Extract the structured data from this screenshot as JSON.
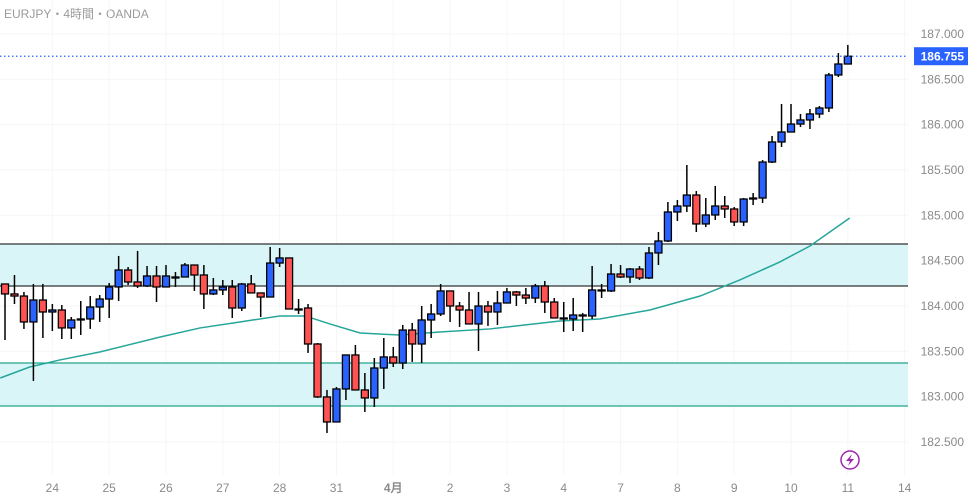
{
  "header": {
    "title": "EURJPY・4時間・OANDA"
  },
  "colors": {
    "up": "#2962ff",
    "down": "#ff5252",
    "border": "#000000",
    "sma": "#26a69a",
    "zone_fill": "#d9f5f7",
    "upper_zone_line": "#333333",
    "lower_zone_line": "#22a38a",
    "last_price": "#2962ff",
    "event_icon": "#9c27b0"
  },
  "icons": {
    "event": "lightning-icon"
  },
  "chart_data": {
    "type": "candlestick",
    "title": "EURJPY・4時間・OANDA",
    "ylim": [
      182.5,
      187.0
    ],
    "y_ticks": [
      "187.000",
      "186.500",
      "186.000",
      "185.500",
      "185.000",
      "184.500",
      "184.000",
      "183.500",
      "183.000",
      "182.500"
    ],
    "y_tick_values": [
      187.0,
      186.5,
      186.0,
      185.5,
      185.0,
      184.5,
      184.0,
      183.5,
      183.0,
      182.5
    ],
    "x_ticks": [
      {
        "label": "24",
        "index": 5
      },
      {
        "label": "25",
        "index": 11
      },
      {
        "label": "26",
        "index": 17
      },
      {
        "label": "27",
        "index": 23
      },
      {
        "label": "28",
        "index": 29
      },
      {
        "label": "31",
        "index": 35
      },
      {
        "label": "4月",
        "index": 41
      },
      {
        "label": "2",
        "index": 47
      },
      {
        "label": "3",
        "index": 53
      },
      {
        "label": "4",
        "index": 59
      },
      {
        "label": "7",
        "index": 65
      },
      {
        "label": "8",
        "index": 71
      },
      {
        "label": "9",
        "index": 77
      },
      {
        "label": "10",
        "index": 83
      },
      {
        "label": "11",
        "index": 89
      },
      {
        "label": "14",
        "index": 95
      }
    ],
    "last_price": "186.755",
    "last_price_value": 186.755,
    "grid": true,
    "zones": [
      {
        "name": "resistance-zone",
        "top": 184.684,
        "bottom": 184.221
      },
      {
        "name": "support-zone",
        "top": 183.371,
        "bottom": 182.897
      }
    ],
    "ohlc": [
      [
        184.243,
        184.243,
        183.625,
        184.133
      ],
      [
        184.133,
        184.342,
        184.022,
        184.11
      ],
      [
        184.11,
        184.155,
        183.747,
        183.824
      ],
      [
        183.824,
        184.243,
        183.173,
        184.066
      ],
      [
        184.066,
        184.243,
        183.647,
        183.934
      ],
      [
        183.934,
        184.022,
        183.724,
        183.956
      ],
      [
        183.956,
        184.011,
        183.636,
        183.758
      ],
      [
        183.758,
        183.879,
        183.636,
        183.846
      ],
      [
        183.846,
        184.055,
        183.68,
        183.857
      ],
      [
        183.857,
        184.11,
        183.747,
        183.989
      ],
      [
        183.989,
        184.121,
        183.824,
        184.077
      ],
      [
        184.077,
        184.254,
        183.868,
        184.21
      ],
      [
        184.21,
        184.552,
        184.055,
        184.397
      ],
      [
        184.397,
        184.43,
        184.232,
        184.265
      ],
      [
        184.265,
        184.607,
        184.199,
        184.221
      ],
      [
        184.221,
        184.441,
        184.21,
        184.331
      ],
      [
        184.331,
        184.441,
        184.044,
        184.21
      ],
      [
        184.21,
        184.452,
        184.21,
        184.331
      ],
      [
        184.32,
        184.375,
        184.21,
        184.32
      ],
      [
        184.32,
        184.474,
        184.32,
        184.452
      ],
      [
        184.452,
        184.452,
        184.166,
        184.342
      ],
      [
        184.342,
        184.452,
        183.967,
        184.133
      ],
      [
        184.133,
        184.309,
        184.121,
        184.177
      ],
      [
        184.177,
        184.287,
        184.121,
        184.21
      ],
      [
        184.21,
        184.287,
        183.868,
        183.978
      ],
      [
        183.978,
        184.254,
        183.945,
        184.243
      ],
      [
        184.243,
        184.342,
        184.144,
        184.144
      ],
      [
        184.144,
        184.144,
        183.879,
        184.099
      ],
      [
        184.099,
        184.651,
        184.099,
        184.474
      ],
      [
        184.474,
        184.64,
        184.43,
        184.53
      ],
      [
        184.53,
        184.53,
        183.967,
        183.967
      ],
      [
        183.967,
        184.077,
        183.912,
        183.967
      ],
      [
        183.978,
        184.022,
        183.482,
        183.581
      ],
      [
        183.581,
        183.592,
        182.986,
        182.997
      ],
      [
        182.997,
        183.074,
        182.599,
        182.721
      ],
      [
        182.721,
        183.107,
        182.721,
        183.085
      ],
      [
        183.085,
        183.46,
        182.963,
        183.46
      ],
      [
        183.46,
        183.57,
        183.074,
        183.074
      ],
      [
        183.074,
        183.261,
        182.831,
        182.986
      ],
      [
        182.986,
        183.427,
        182.886,
        183.316
      ],
      [
        183.316,
        183.647,
        183.085,
        183.438
      ],
      [
        183.438,
        183.548,
        183.327,
        183.371
      ],
      [
        183.371,
        183.791,
        183.305,
        183.735
      ],
      [
        183.735,
        183.813,
        183.383,
        183.581
      ],
      [
        183.581,
        184.0,
        183.371,
        183.846
      ],
      [
        183.846,
        184.022,
        183.647,
        183.912
      ],
      [
        183.912,
        184.243,
        183.89,
        184.166
      ],
      [
        184.166,
        184.166,
        183.824,
        184.0
      ],
      [
        184.0,
        184.044,
        183.769,
        183.956
      ],
      [
        183.956,
        184.155,
        183.802,
        183.802
      ],
      [
        183.802,
        184.155,
        183.504,
        184.0
      ],
      [
        184.0,
        184.055,
        183.78,
        183.934
      ],
      [
        183.934,
        184.166,
        183.791,
        184.033
      ],
      [
        184.033,
        184.199,
        184.033,
        184.155
      ],
      [
        184.155,
        184.166,
        184.0,
        184.121
      ],
      [
        184.121,
        184.199,
        184.022,
        184.088
      ],
      [
        184.088,
        184.243,
        184.033,
        184.221
      ],
      [
        184.221,
        184.276,
        183.923,
        184.044
      ],
      [
        184.044,
        184.088,
        183.868,
        183.868
      ],
      [
        183.868,
        184.044,
        183.713,
        183.868
      ],
      [
        183.857,
        184.088,
        183.724,
        183.901
      ],
      [
        183.901,
        183.923,
        183.713,
        183.901
      ],
      [
        183.89,
        184.441,
        183.857,
        184.177
      ],
      [
        184.177,
        184.243,
        184.088,
        184.177
      ],
      [
        184.166,
        184.463,
        184.155,
        184.353
      ],
      [
        184.353,
        184.452,
        184.309,
        184.32
      ],
      [
        184.32,
        184.419,
        184.254,
        184.408
      ],
      [
        184.408,
        184.441,
        184.287,
        184.309
      ],
      [
        184.309,
        184.651,
        184.298,
        184.585
      ],
      [
        184.585,
        184.816,
        184.452,
        184.717
      ],
      [
        184.717,
        185.147,
        184.706,
        185.037
      ],
      [
        185.037,
        185.169,
        184.938,
        185.103
      ],
      [
        185.103,
        185.555,
        185.037,
        185.224
      ],
      [
        185.224,
        185.268,
        184.816,
        184.905
      ],
      [
        184.905,
        185.191,
        184.871,
        185.004
      ],
      [
        185.004,
        185.324,
        184.949,
        185.103
      ],
      [
        185.103,
        185.213,
        184.971,
        185.07
      ],
      [
        185.07,
        185.092,
        184.882,
        184.927
      ],
      [
        184.927,
        185.191,
        184.882,
        185.18
      ],
      [
        185.18,
        185.246,
        185.114,
        185.191
      ],
      [
        185.191,
        185.61,
        185.136,
        185.588
      ],
      [
        185.588,
        185.875,
        185.577,
        185.809
      ],
      [
        185.809,
        186.228,
        185.754,
        185.919
      ],
      [
        185.919,
        186.228,
        185.919,
        186.007
      ],
      [
        186.007,
        186.118,
        185.974,
        186.052
      ],
      [
        186.052,
        186.173,
        185.952,
        186.118
      ],
      [
        186.118,
        186.206,
        186.074,
        186.184
      ],
      [
        186.184,
        186.57,
        186.14,
        186.548
      ],
      [
        186.548,
        186.79,
        186.526,
        186.669
      ],
      [
        186.669,
        186.879,
        186.669,
        186.755
      ]
    ],
    "sma": [
      [
        -0.5,
        183.206
      ],
      [
        2.6,
        183.327
      ],
      [
        5.8,
        183.405
      ],
      [
        10,
        183.493
      ],
      [
        16.4,
        183.658
      ],
      [
        20.6,
        183.758
      ],
      [
        24.8,
        183.824
      ],
      [
        29,
        183.89
      ],
      [
        31.7,
        183.89
      ],
      [
        34.3,
        183.802
      ],
      [
        37.5,
        183.702
      ],
      [
        41.7,
        183.68
      ],
      [
        45.9,
        183.713
      ],
      [
        51.2,
        183.747
      ],
      [
        58.6,
        183.835
      ],
      [
        62.8,
        183.857
      ],
      [
        68.1,
        183.956
      ],
      [
        73.4,
        184.11
      ],
      [
        77.6,
        184.287
      ],
      [
        81.8,
        184.485
      ],
      [
        85,
        184.662
      ],
      [
        89.2,
        184.971
      ]
    ]
  }
}
